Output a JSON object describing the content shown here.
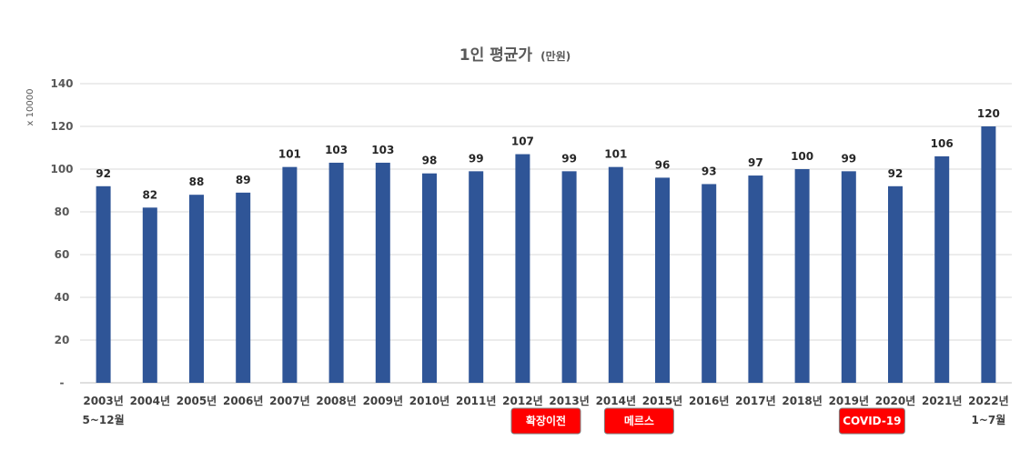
{
  "chart_data": {
    "type": "bar",
    "title": "1인 평균가",
    "title_unit": "(만원)",
    "yunit": "x 10000",
    "ylim": [
      0,
      140
    ],
    "yticks": [
      "-",
      "20",
      "40",
      "60",
      "80",
      "100",
      "120",
      "140"
    ],
    "grid": true,
    "categories": [
      "2003년",
      "2004년",
      "2005년",
      "2006년",
      "2007년",
      "2008년",
      "2009년",
      "2010년",
      "2011년",
      "2012년",
      "2013년",
      "2014년",
      "2015년",
      "2016년",
      "2017년",
      "2018년",
      "2019년",
      "2020년",
      "2021년",
      "2022년"
    ],
    "category_sublabels": {
      "2003년": "5~12월",
      "2022년": "1~7월"
    },
    "values": [
      92,
      82,
      88,
      89,
      101,
      103,
      103,
      98,
      99,
      107,
      99,
      101,
      96,
      93,
      97,
      100,
      99,
      92,
      106,
      120
    ],
    "annotations": [
      {
        "text": "확장이전",
        "category": "2012년",
        "span": 2
      },
      {
        "text": "메르스",
        "category": "2014년",
        "span": 2
      },
      {
        "text": "COVID-19",
        "category": "2019년",
        "span": 2
      }
    ],
    "colors": {
      "bar": "#2f5597",
      "badge": "#ff0000",
      "grid": "#d9d9d9"
    }
  }
}
